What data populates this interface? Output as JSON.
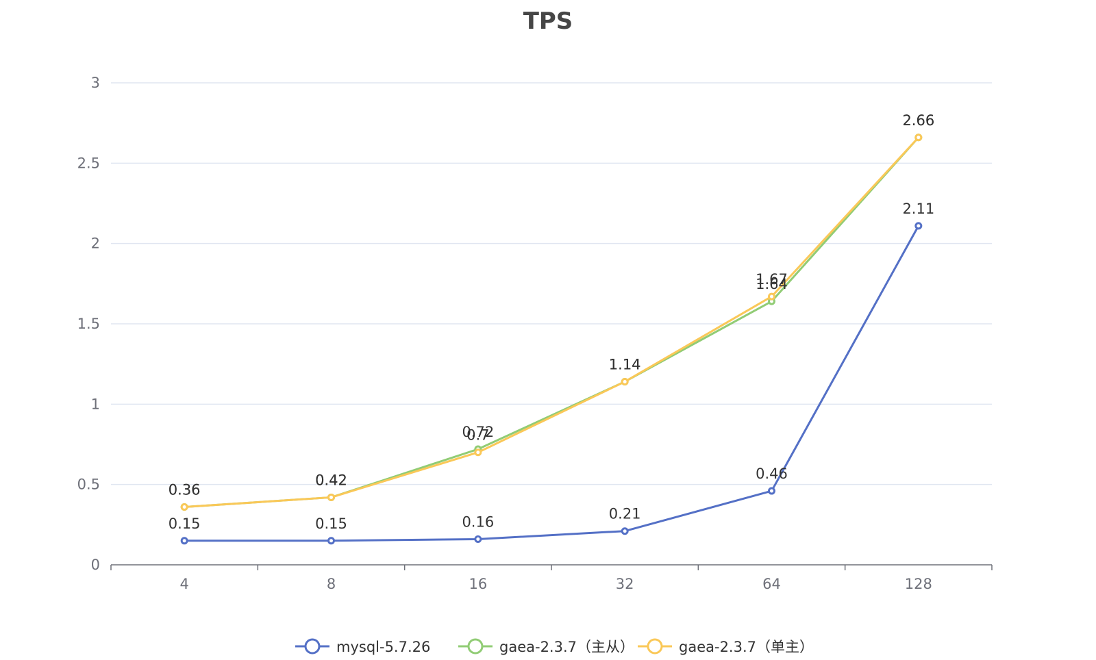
{
  "chart_data": {
    "type": "line",
    "title": "TPS",
    "xlabel": "",
    "ylabel": "",
    "categories": [
      "4",
      "8",
      "16",
      "32",
      "64",
      "128"
    ],
    "ylim": [
      0,
      3
    ],
    "yticks": [
      "0",
      "0.5",
      "1",
      "1.5",
      "2",
      "2.5",
      "3"
    ],
    "grid": true,
    "legend_position": "bottom",
    "series": [
      {
        "name": "mysql-5.7.26",
        "color": "#5470c6",
        "values": [
          0.15,
          0.15,
          0.16,
          0.21,
          0.46,
          2.11
        ],
        "labels": [
          "0.15",
          "0.15",
          "0.16",
          "0.21",
          "0.46",
          "2.11"
        ]
      },
      {
        "name": "gaea-2.3.7（主从）",
        "color": "#91cc75",
        "values": [
          0.36,
          0.42,
          0.72,
          1.14,
          1.64,
          2.66
        ],
        "labels": [
          "0.36",
          "0.42",
          "0.72",
          "1.14",
          "1.64",
          "2.66"
        ]
      },
      {
        "name": "gaea-2.3.7（单主）",
        "color": "#fac858",
        "values": [
          0.36,
          0.42,
          0.7,
          1.14,
          1.67,
          2.66
        ],
        "labels": [
          "0.36",
          "0.42",
          "0.7",
          "1.14",
          "1.67",
          "2.66"
        ]
      }
    ]
  }
}
